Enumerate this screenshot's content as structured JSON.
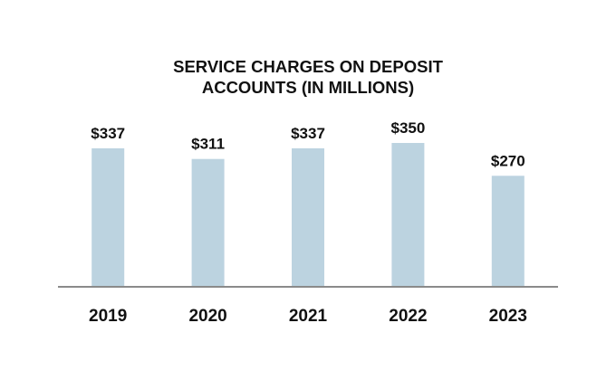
{
  "chart_data": {
    "type": "bar",
    "title_lines": [
      "SERVICE CHARGES ON DEPOSIT",
      "ACCOUNTS (IN MILLIONS)"
    ],
    "categories": [
      "2019",
      "2020",
      "2021",
      "2022",
      "2023"
    ],
    "values": [
      337,
      311,
      337,
      350,
      270
    ],
    "data_labels": [
      "$337",
      "$311",
      "$337",
      "$350",
      "$270"
    ],
    "ylim": [
      0,
      350
    ],
    "grid": false,
    "legend": "none",
    "bar_color": "#bcd3e0",
    "axis_color": "#8a8a8a"
  }
}
